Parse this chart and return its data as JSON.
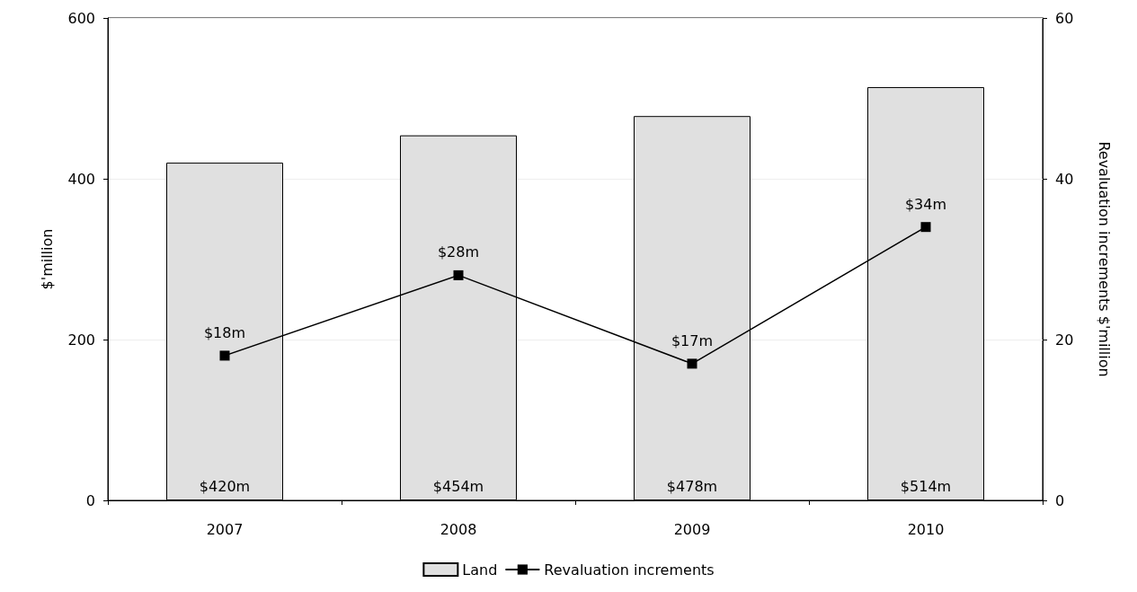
{
  "chart_data": {
    "type": "bar",
    "categories": [
      "2007",
      "2008",
      "2009",
      "2010"
    ],
    "ylabel": "$'million",
    "y2label": "Revaluation increments $'million",
    "series": [
      {
        "name": "Land",
        "color": "#e0e0e0",
        "values": [
          420,
          454,
          478,
          514
        ],
        "value_labels": [
          "$420m",
          "$454m",
          "$478m",
          "$514m"
        ]
      },
      {
        "name": "Revaluation increments",
        "type": "line",
        "axis": "y2",
        "color": "#000000",
        "marker": "square",
        "values": [
          18,
          28,
          17,
          34
        ],
        "value_labels": [
          "$18m",
          "$28m",
          "$17m",
          "$34m"
        ]
      }
    ],
    "ylim": [
      0,
      600
    ],
    "yticks": [
      0,
      200,
      400,
      600
    ],
    "y2lim": [
      0,
      60
    ],
    "y2ticks": [
      0,
      20,
      40,
      60
    ],
    "grid": "y",
    "legend": "bottom"
  }
}
